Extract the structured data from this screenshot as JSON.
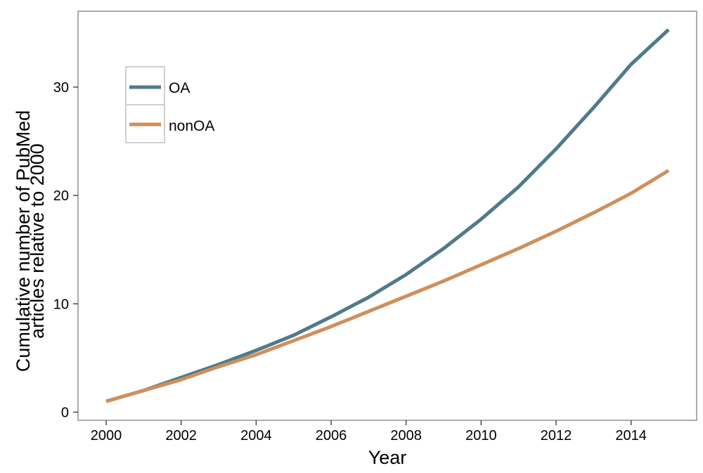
{
  "chart_data": {
    "type": "line",
    "title": "",
    "xlabel": "Year",
    "ylabel_lines": [
      "Cumulative number of  PubMed",
      "articles relative to 2000"
    ],
    "xlim": [
      1999.25,
      2015.75
    ],
    "ylim": [
      -0.75,
      37.0
    ],
    "x_ticks": [
      2000,
      2002,
      2004,
      2006,
      2008,
      2010,
      2012,
      2014
    ],
    "y_ticks": [
      0,
      10,
      20,
      30
    ],
    "grid": false,
    "legend_position": "top-left",
    "x": [
      2000,
      2001,
      2002,
      2003,
      2004,
      2005,
      2006,
      2007,
      2008,
      2009,
      2010,
      2011,
      2012,
      2013,
      2014,
      2015
    ],
    "series": [
      {
        "name": "OA",
        "color": "#4f7a8a",
        "values": [
          1.0,
          2.0,
          3.2,
          4.4,
          5.7,
          7.1,
          8.8,
          10.6,
          12.7,
          15.1,
          17.8,
          20.8,
          24.3,
          28.1,
          32.1,
          35.3
        ]
      },
      {
        "name": "nonOA",
        "color": "#cf8f5b",
        "values": [
          1.0,
          2.0,
          3.0,
          4.2,
          5.3,
          6.6,
          7.9,
          9.3,
          10.7,
          12.1,
          13.6,
          15.1,
          16.7,
          18.4,
          20.2,
          22.3
        ]
      }
    ]
  }
}
